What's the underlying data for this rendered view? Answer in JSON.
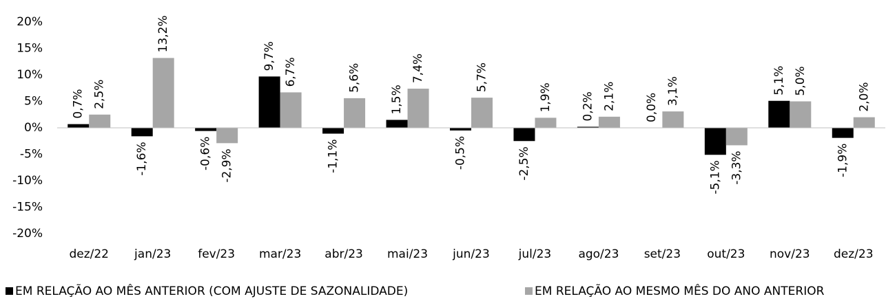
{
  "chart_data": {
    "type": "bar",
    "categories": [
      "dez/22",
      "jan/23",
      "fev/23",
      "mar/23",
      "abr/23",
      "mai/23",
      "jun/23",
      "jul/23",
      "ago/23",
      "set/23",
      "out/23",
      "nov/23",
      "dez/23"
    ],
    "series": [
      {
        "name": "EM RELAÇÃO AO MÊS ANTERIOR (COM AJUSTE DE SAZONALIDADE)",
        "color": "#000000",
        "values": [
          0.7,
          -1.6,
          -0.6,
          9.7,
          -1.1,
          1.5,
          -0.5,
          -2.5,
          0.2,
          0.0,
          -5.1,
          5.1,
          -1.9
        ],
        "value_labels": [
          "0,7%",
          "-1,6%",
          "-0,6%",
          "9,7%",
          "-1,1%",
          "1,5%",
          "-0,5%",
          "-2,5%",
          "0,2%",
          "0,0%",
          "-5,1%",
          "5,1%",
          "-1,9%"
        ]
      },
      {
        "name": "EM RELAÇÃO AO MESMO MÊS DO ANO ANTERIOR",
        "color": "#a6a6a6",
        "values": [
          2.5,
          13.2,
          -2.9,
          6.7,
          5.6,
          7.4,
          5.7,
          1.9,
          2.1,
          3.1,
          -3.3,
          5.0,
          2.0
        ],
        "value_labels": [
          "2,5%",
          "13,2%",
          "-2,9%",
          "6,7%",
          "5,6%",
          "7,4%",
          "5,7%",
          "1,9%",
          "2,1%",
          "3,1%",
          "-3,3%",
          "5,0%",
          "2,0%"
        ]
      }
    ],
    "ylim": [
      -20,
      20
    ],
    "yticks": [
      {
        "value": -20,
        "label": "-20%"
      },
      {
        "value": -15,
        "label": "-15%"
      },
      {
        "value": -10,
        "label": "-10%"
      },
      {
        "value": -5,
        "label": "-5%"
      },
      {
        "value": 0,
        "label": "0%"
      },
      {
        "value": 5,
        "label": "5%"
      },
      {
        "value": 10,
        "label": "10%"
      },
      {
        "value": 15,
        "label": "15%"
      },
      {
        "value": 20,
        "label": "20%"
      }
    ],
    "grid": false,
    "legend": "bottom"
  }
}
